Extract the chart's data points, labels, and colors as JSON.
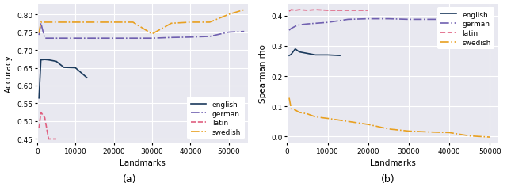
{
  "background_color": "#e8e8f0",
  "fig_background": "#ffffff",
  "plot_a": {
    "title": "(a)",
    "xlabel": "Landmarks",
    "ylabel": "Accuracy",
    "xlim": [
      0,
      55000
    ],
    "ylim": [
      0.44,
      0.83
    ],
    "yticks": [
      0.45,
      0.5,
      0.55,
      0.6,
      0.65,
      0.7,
      0.75,
      0.8
    ],
    "xticks": [
      0,
      10000,
      20000,
      30000,
      40000,
      50000
    ],
    "series": {
      "english": {
        "x": [
          500,
          1000,
          2000,
          3000,
          5000,
          7000,
          10000,
          13000
        ],
        "y": [
          0.565,
          0.672,
          0.673,
          0.672,
          0.668,
          0.651,
          0.65,
          0.622
        ],
        "color": "#1b3a5c",
        "linestyle": "-",
        "linewidth": 1.2
      },
      "german": {
        "x": [
          500,
          1000,
          2000,
          3000,
          5000,
          7000,
          10000,
          15000,
          20000,
          25000,
          30000,
          35000,
          40000,
          45000,
          50000,
          54000
        ],
        "y": [
          0.742,
          0.775,
          0.733,
          0.733,
          0.733,
          0.733,
          0.733,
          0.733,
          0.733,
          0.733,
          0.733,
          0.735,
          0.736,
          0.738,
          0.75,
          0.752
        ],
        "color": "#7060b0",
        "linestyle": "-.",
        "linewidth": 1.2
      },
      "latin": {
        "x": [
          500,
          1000,
          2000,
          3000,
          5000
        ],
        "y": [
          0.48,
          0.525,
          0.51,
          0.45,
          0.45
        ],
        "color": "#e06080",
        "linestyle": "--",
        "linewidth": 1.2
      },
      "swedish": {
        "x": [
          500,
          1000,
          2000,
          3000,
          5000,
          7000,
          10000,
          15000,
          20000,
          25000,
          30000,
          35000,
          40000,
          45000,
          50000,
          54000
        ],
        "y": [
          0.748,
          0.778,
          0.778,
          0.778,
          0.778,
          0.778,
          0.778,
          0.778,
          0.778,
          0.778,
          0.745,
          0.775,
          0.778,
          0.778,
          0.8,
          0.813
        ],
        "color": "#e8a020",
        "linestyle": "-.",
        "linewidth": 1.2
      }
    }
  },
  "plot_b": {
    "title": "(b)",
    "xlabel": "Landmarks",
    "ylabel": "Spearman rho",
    "xlim": [
      0,
      52000
    ],
    "ylim": [
      -0.02,
      0.44
    ],
    "yticks": [
      0.0,
      0.1,
      0.2,
      0.3,
      0.4
    ],
    "xticks": [
      0,
      10000,
      20000,
      30000,
      40000,
      50000
    ],
    "series": {
      "english": {
        "x": [
          500,
          1000,
          2000,
          3000,
          5000,
          7000,
          10000,
          13000
        ],
        "y": [
          0.268,
          0.272,
          0.29,
          0.28,
          0.275,
          0.27,
          0.27,
          0.268
        ],
        "color": "#1b3a5c",
        "linestyle": "-",
        "linewidth": 1.2
      },
      "german": {
        "x": [
          500,
          1000,
          2000,
          3000,
          5000,
          7000,
          10000,
          15000,
          20000,
          25000,
          30000,
          35000,
          40000,
          45000,
          50000
        ],
        "y": [
          0.352,
          0.358,
          0.365,
          0.37,
          0.373,
          0.375,
          0.378,
          0.388,
          0.39,
          0.39,
          0.388,
          0.388,
          0.388,
          0.375,
          0.372
        ],
        "color": "#7060b0",
        "linestyle": "-.",
        "linewidth": 1.2
      },
      "latin": {
        "x": [
          500,
          1000,
          2000,
          3000,
          5000,
          7000,
          10000,
          15000,
          20000
        ],
        "y": [
          0.415,
          0.42,
          0.418,
          0.42,
          0.418,
          0.42,
          0.418,
          0.418,
          0.418
        ],
        "color": "#e06080",
        "linestyle": "--",
        "linewidth": 1.2
      },
      "swedish": {
        "x": [
          500,
          1000,
          2000,
          3000,
          5000,
          7000,
          10000,
          15000,
          20000,
          25000,
          30000,
          35000,
          40000,
          45000,
          50000
        ],
        "y": [
          0.128,
          0.092,
          0.088,
          0.08,
          0.075,
          0.065,
          0.06,
          0.05,
          0.04,
          0.025,
          0.018,
          0.015,
          0.013,
          0.002,
          -0.002
        ],
        "color": "#e8a020",
        "linestyle": "-.",
        "linewidth": 1.2
      }
    }
  },
  "legend_order": [
    "english",
    "german",
    "latin",
    "swedish"
  ],
  "legend_linestyles": {
    "english": "-",
    "german": "-.",
    "latin": "--",
    "swedish": "-."
  },
  "legend_colors": {
    "english": "#1b3a5c",
    "german": "#7060b0",
    "latin": "#e06080",
    "swedish": "#e8a020"
  }
}
